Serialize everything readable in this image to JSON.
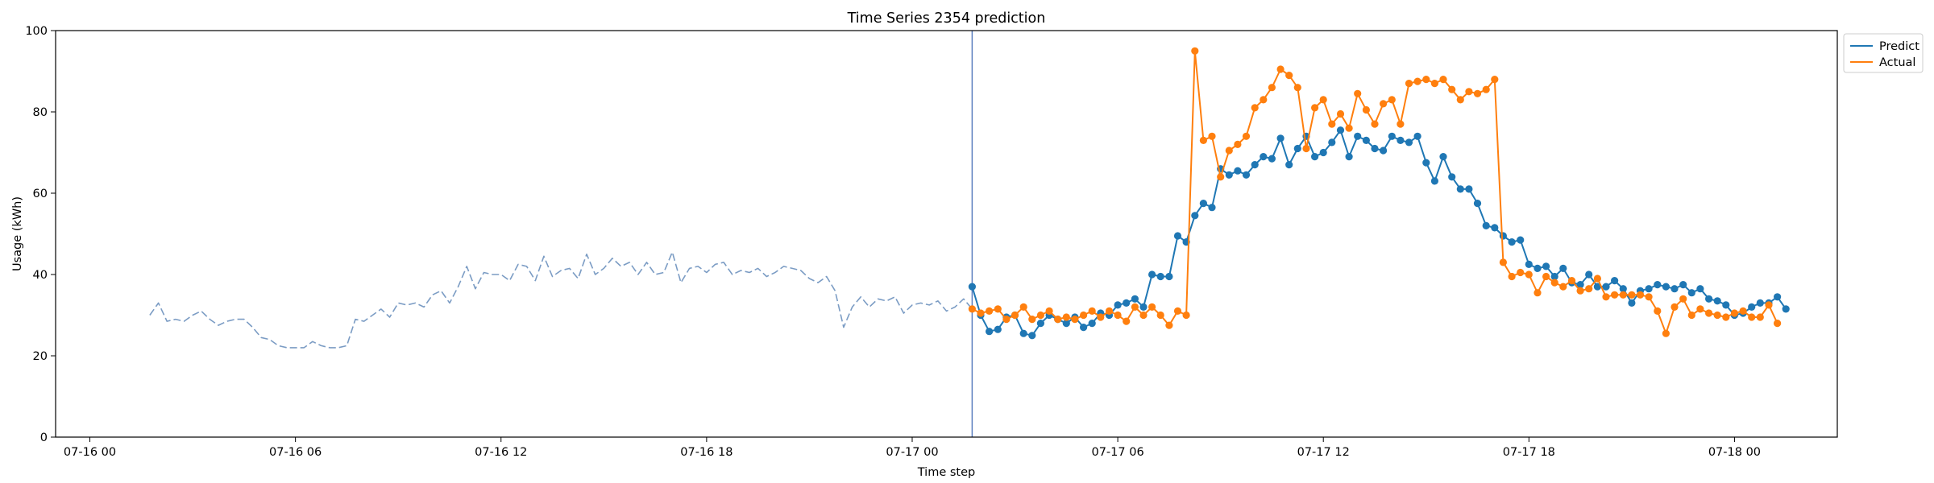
{
  "chart_data": {
    "type": "line",
    "title": "Time Series 2354 prediction",
    "xlabel": "Time step",
    "ylabel": "Usage (kWh)",
    "ylim": [
      0,
      100
    ],
    "yticks": [
      0,
      20,
      40,
      60,
      80,
      100
    ],
    "xticks": [
      {
        "label": "07-16 00",
        "t": "2024-07-16T00:00"
      },
      {
        "label": "07-16 06",
        "t": "2024-07-16T06:00"
      },
      {
        "label": "07-16 12",
        "t": "2024-07-16T12:00"
      },
      {
        "label": "07-16 18",
        "t": "2024-07-16T18:00"
      },
      {
        "label": "07-17 00",
        "t": "2024-07-17T00:00"
      },
      {
        "label": "07-17 06",
        "t": "2024-07-17T06:00"
      },
      {
        "label": "07-17 12",
        "t": "2024-07-17T12:00"
      },
      {
        "label": "07-17 18",
        "t": "2024-07-17T18:00"
      },
      {
        "label": "07-18 00",
        "t": "2024-07-18T00:00"
      }
    ],
    "xlim": [
      "2024-07-15T23:00",
      "2024-07-18T03:00"
    ],
    "grid": false,
    "legend_position": "top-right",
    "vline": "2024-07-17T01:45",
    "series": [
      {
        "name": "",
        "style": "dashed",
        "color": "#7b9cc4",
        "start": "2024-07-16T01:45",
        "interval_minutes": 15,
        "values": [
          30,
          33,
          28.5,
          29,
          28.5,
          30,
          31,
          29,
          27.5,
          28.5,
          29,
          29,
          27,
          24.5,
          24,
          22.5,
          22,
          22,
          22,
          23.5,
          22.5,
          22,
          22,
          22.5,
          29,
          28.5,
          30,
          31.5,
          29.5,
          33,
          32.5,
          33,
          32,
          35,
          36,
          33,
          37,
          42,
          36.5,
          40.5,
          40,
          40,
          38.5,
          42.5,
          42,
          38.5,
          44.5,
          39.5,
          41,
          41.5,
          39,
          45,
          40,
          41.5,
          44,
          42,
          43,
          40,
          43,
          40,
          40.5,
          45.5,
          38,
          41.5,
          42,
          40.5,
          42.5,
          43,
          40,
          41,
          40.5,
          41.5,
          39.5,
          40.5,
          42,
          41.5,
          41,
          39,
          38,
          39.5,
          36,
          27,
          32,
          34.5,
          32,
          34,
          33.5,
          34.5,
          30.5,
          32.5,
          33,
          32.5,
          33.5,
          31,
          32,
          34,
          31.5
        ]
      },
      {
        "name": "Predict",
        "style": "solid-markers",
        "color": "#1f77b4",
        "start": "2024-07-17T01:45",
        "interval_minutes": 15,
        "values": [
          37,
          30,
          26,
          26.5,
          29.5,
          30,
          25.5,
          25,
          28,
          30,
          29,
          28,
          29.5,
          27,
          28,
          30.5,
          30,
          32.5,
          33,
          34,
          32,
          40,
          39.5,
          39.5,
          49.5,
          48,
          54.5,
          57.5,
          56.5,
          66,
          64.5,
          65.5,
          64.5,
          67,
          69,
          68.5,
          73.5,
          67,
          71,
          74,
          69,
          70,
          72.5,
          75.5,
          69,
          74,
          73,
          71,
          70.5,
          74,
          73,
          72.5,
          74,
          67.5,
          63,
          69,
          64,
          61,
          61,
          57.5,
          52,
          51.5,
          49.5,
          48,
          48.5,
          42.5,
          41.5,
          42,
          39.5,
          41.5,
          38,
          37.5,
          40,
          37,
          37,
          38.5,
          36.5,
          33,
          36,
          36.5,
          37.5,
          37,
          36.5,
          37.5,
          35.5,
          36.5,
          34,
          33.5,
          32.5,
          30,
          30.5,
          32,
          33,
          33,
          34.5,
          31.5
        ]
      },
      {
        "name": "Actual",
        "style": "solid-markers",
        "color": "#ff7f0e",
        "start": "2024-07-17T01:45",
        "interval_minutes": 15,
        "values": [
          31.5,
          30.5,
          31,
          31.5,
          29,
          30,
          32,
          29,
          30,
          31,
          29,
          29.5,
          29,
          30,
          31,
          29.5,
          31,
          30,
          28.5,
          32,
          30,
          32,
          30,
          27.5,
          31,
          30,
          95,
          73,
          74,
          64,
          70.5,
          72,
          74,
          81,
          83,
          86,
          90.5,
          89,
          86,
          71,
          81,
          83,
          77,
          79.5,
          76,
          84.5,
          80.5,
          77,
          82,
          83,
          77,
          87,
          87.5,
          88,
          87,
          88,
          85.5,
          83,
          85,
          84.5,
          85.5,
          88,
          43,
          39.5,
          40.5,
          40,
          35.5,
          39.5,
          38,
          37,
          38.5,
          36,
          36.5,
          39,
          34.5,
          35,
          35,
          35,
          35,
          34.5,
          31,
          25.5,
          32,
          34,
          30,
          31.5,
          30.5,
          30,
          29.5,
          30.5,
          31,
          29.5,
          29.5,
          32.5,
          28
        ]
      }
    ]
  }
}
